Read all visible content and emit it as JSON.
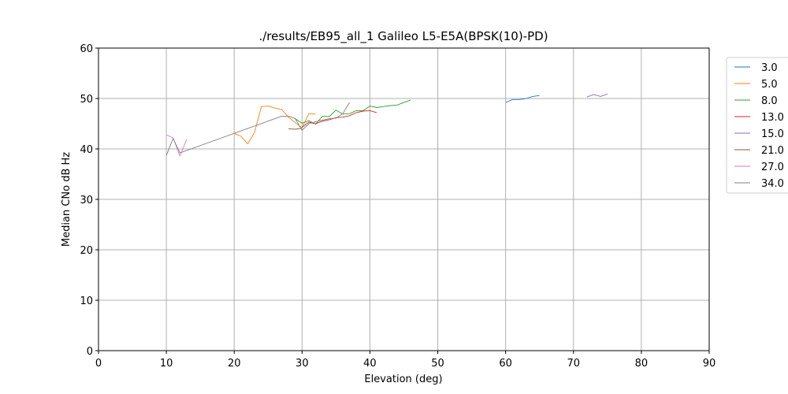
{
  "chart_data": {
    "type": "line",
    "title": "./results/EB95_all_1 Galileo L5-E5A(BPSK(10)-PD)",
    "xlabel": "Elevation (deg)",
    "ylabel": "Median CNo dB Hz",
    "xlim": [
      0,
      90
    ],
    "ylim": [
      0,
      60
    ],
    "xticks": [
      "0",
      "10",
      "20",
      "30",
      "40",
      "50",
      "60",
      "70",
      "80",
      "90"
    ],
    "yticks": [
      "0",
      "10",
      "20",
      "30",
      "40",
      "50",
      "60"
    ],
    "grid": true,
    "legend_position": "right",
    "series": [
      {
        "name": "3.0",
        "color": "#1f77b4",
        "points": [
          [
            60,
            49.2
          ],
          [
            61,
            49.8
          ],
          [
            62,
            49.8
          ],
          [
            63,
            50.0
          ],
          [
            64,
            50.4
          ],
          [
            65,
            50.6
          ]
        ]
      },
      {
        "name": "5.0",
        "color": "#ff7f0e",
        "points": [
          [
            20,
            43.1
          ],
          [
            21,
            42.5
          ],
          [
            22,
            41.0
          ],
          [
            23,
            43.3
          ],
          [
            24,
            48.4
          ],
          [
            25,
            48.5
          ],
          [
            26,
            48.1
          ],
          [
            27,
            47.8
          ],
          [
            28,
            46.3
          ],
          [
            29,
            45.2
          ],
          [
            30,
            44.2
          ],
          [
            31,
            47.0
          ],
          [
            32,
            46.9
          ]
        ]
      },
      {
        "name": "8.0",
        "color": "#2ca02c",
        "points": [
          [
            29,
            46.0
          ],
          [
            30,
            45.1
          ],
          [
            31,
            45.6
          ],
          [
            32,
            44.9
          ],
          [
            33,
            46.5
          ],
          [
            34,
            46.4
          ],
          [
            35,
            47.7
          ],
          [
            36,
            46.9
          ],
          [
            37,
            47.0
          ],
          [
            38,
            47.6
          ],
          [
            39,
            47.6
          ],
          [
            40,
            48.5
          ],
          [
            41,
            48.2
          ],
          [
            42,
            48.4
          ],
          [
            43,
            48.6
          ],
          [
            44,
            48.7
          ],
          [
            45,
            49.2
          ],
          [
            46,
            49.7
          ]
        ]
      },
      {
        "name": "13.0",
        "color": "#d62728",
        "points": [
          [
            30,
            44.3
          ],
          [
            31,
            45.3
          ],
          [
            32,
            45.0
          ],
          [
            33,
            45.5
          ],
          [
            34,
            45.8
          ],
          [
            35,
            46.2
          ],
          [
            36,
            46.3
          ],
          [
            37,
            46.6
          ],
          [
            38,
            47.2
          ],
          [
            39,
            47.5
          ],
          [
            40,
            47.6
          ],
          [
            41,
            47.2
          ]
        ]
      },
      {
        "name": "15.0",
        "color": "#9467bd",
        "points": [
          [
            72,
            50.3
          ],
          [
            73,
            50.8
          ],
          [
            74,
            50.4
          ],
          [
            75,
            50.9
          ]
        ]
      },
      {
        "name": "21.0",
        "color": "#8c564b",
        "points": [
          [
            28,
            44.0
          ],
          [
            29,
            43.9
          ],
          [
            30,
            44.1
          ]
        ]
      },
      {
        "name": "27.0",
        "color": "#e377c2",
        "points": [
          [
            10,
            42.8
          ],
          [
            11,
            42.2
          ],
          [
            12,
            38.6
          ],
          [
            13,
            41.9
          ]
        ]
      },
      {
        "name": "34.0",
        "color": "#7f7f7f",
        "points": [
          [
            10,
            38.7
          ],
          [
            11,
            42.1
          ],
          [
            12,
            39.2
          ],
          [
            27,
            46.5
          ],
          [
            28,
            46.5
          ],
          [
            29,
            46.0
          ],
          [
            30,
            43.7
          ],
          [
            31,
            45.0
          ],
          [
            32,
            45.4
          ],
          [
            33,
            45.7
          ],
          [
            34,
            46.0
          ],
          [
            35,
            46.1
          ],
          [
            36,
            47.0
          ],
          [
            37,
            49.2
          ]
        ]
      }
    ]
  }
}
